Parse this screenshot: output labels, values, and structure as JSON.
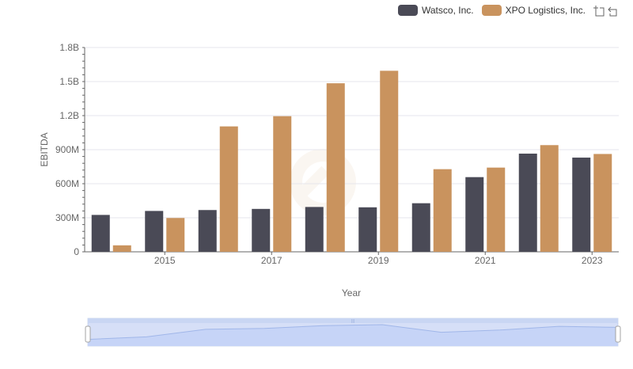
{
  "chart_data": {
    "type": "bar",
    "xlabel": "Year",
    "ylabel": "EBITDA",
    "ylim": [
      0,
      1800000000
    ],
    "yticks": [
      {
        "value": 0,
        "label": "0"
      },
      {
        "value": 300000000,
        "label": "300M"
      },
      {
        "value": 600000000,
        "label": "600M"
      },
      {
        "value": 900000000,
        "label": "900M"
      },
      {
        "value": 1200000000,
        "label": "1.2B"
      },
      {
        "value": 1500000000,
        "label": "1.5B"
      },
      {
        "value": 1800000000,
        "label": "1.8B"
      }
    ],
    "categories": [
      "2014",
      "2015",
      "2016",
      "2017",
      "2018",
      "2019",
      "2020",
      "2021",
      "2022",
      "2023"
    ],
    "xtick_labels": [
      "",
      "2015",
      "",
      "2017",
      "",
      "2019",
      "",
      "2021",
      "",
      "2023"
    ],
    "series": [
      {
        "name": "Watsco, Inc.",
        "color": "#4a4a56",
        "values": [
          325000000,
          360000000,
          368000000,
          378000000,
          395000000,
          392000000,
          428000000,
          658000000,
          865000000,
          830000000
        ]
      },
      {
        "name": "XPO Logistics, Inc.",
        "color": "#c9935e",
        "values": [
          57000000,
          298000000,
          1105000000,
          1195000000,
          1485000000,
          1595000000,
          728000000,
          742000000,
          940000000,
          862000000
        ]
      }
    ],
    "grid": true,
    "legend_position": "top-right"
  },
  "legend": {
    "items": [
      {
        "label": "Watsco, Inc.",
        "color": "#4a4a56"
      },
      {
        "label": "XPO Logistics, Inc.",
        "color": "#c9935e"
      }
    ]
  },
  "toolbox": {
    "zoom_icon": "zoom-select-icon",
    "reset_icon": "zoom-reset-icon"
  },
  "slider": {
    "range": [
      0,
      100
    ]
  }
}
